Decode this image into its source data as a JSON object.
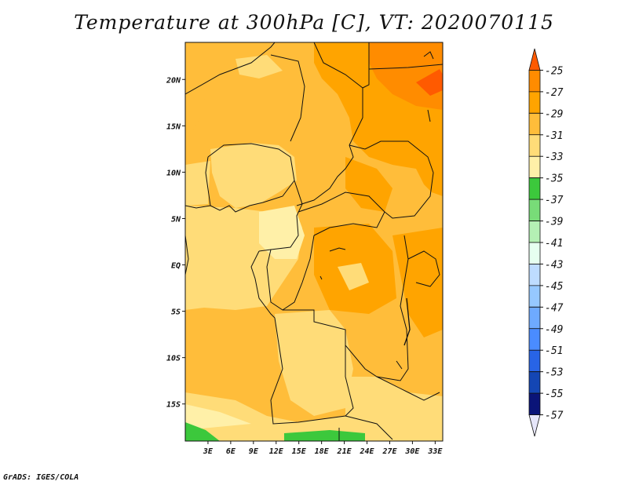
{
  "title": "Temperature at 300hPa [C], VT: 2020070115",
  "credit": "GrADS: IGES/COLA",
  "map": {
    "lon_range": [
      0,
      34
    ],
    "lat_range": [
      -19,
      24
    ],
    "x_ticks": [
      {
        "lon": 3,
        "label": "3E"
      },
      {
        "lon": 6,
        "label": "6E"
      },
      {
        "lon": 9,
        "label": "9E"
      },
      {
        "lon": 12,
        "label": "12E"
      },
      {
        "lon": 15,
        "label": "15E"
      },
      {
        "lon": 18,
        "label": "18E"
      },
      {
        "lon": 21,
        "label": "21E"
      },
      {
        "lon": 24,
        "label": "24E"
      },
      {
        "lon": 27,
        "label": "27E"
      },
      {
        "lon": 30,
        "label": "30E"
      },
      {
        "lon": 33,
        "label": "33E"
      }
    ],
    "y_ticks": [
      {
        "lat": 20,
        "label": "20N"
      },
      {
        "lat": 15,
        "label": "15N"
      },
      {
        "lat": 10,
        "label": "10N"
      },
      {
        "lat": 5,
        "label": "5N"
      },
      {
        "lat": 0,
        "label": "EQ"
      },
      {
        "lat": -5,
        "label": "5S"
      },
      {
        "lat": -10,
        "label": "10S"
      },
      {
        "lat": -15,
        "label": "15S"
      }
    ]
  },
  "colorbar": {
    "labels": [
      "-25",
      "-27",
      "-29",
      "-31",
      "-33",
      "-35",
      "-37",
      "-39",
      "-41",
      "-43",
      "-45",
      "-47",
      "-49",
      "-51",
      "-53",
      "-55",
      "-57"
    ],
    "colors": [
      "#ff5a00",
      "#ff8c00",
      "#ffa400",
      "#ffbd3a",
      "#ffdc78",
      "#fff0a8",
      "#3cc83c",
      "#78dc78",
      "#b4f0b4",
      "#e6fff0",
      "#bedcff",
      "#96c8ff",
      "#6eaaff",
      "#4a8cff",
      "#2864e6",
      "#1446b4",
      "#0a1478",
      "#e6e6fa"
    ]
  }
}
